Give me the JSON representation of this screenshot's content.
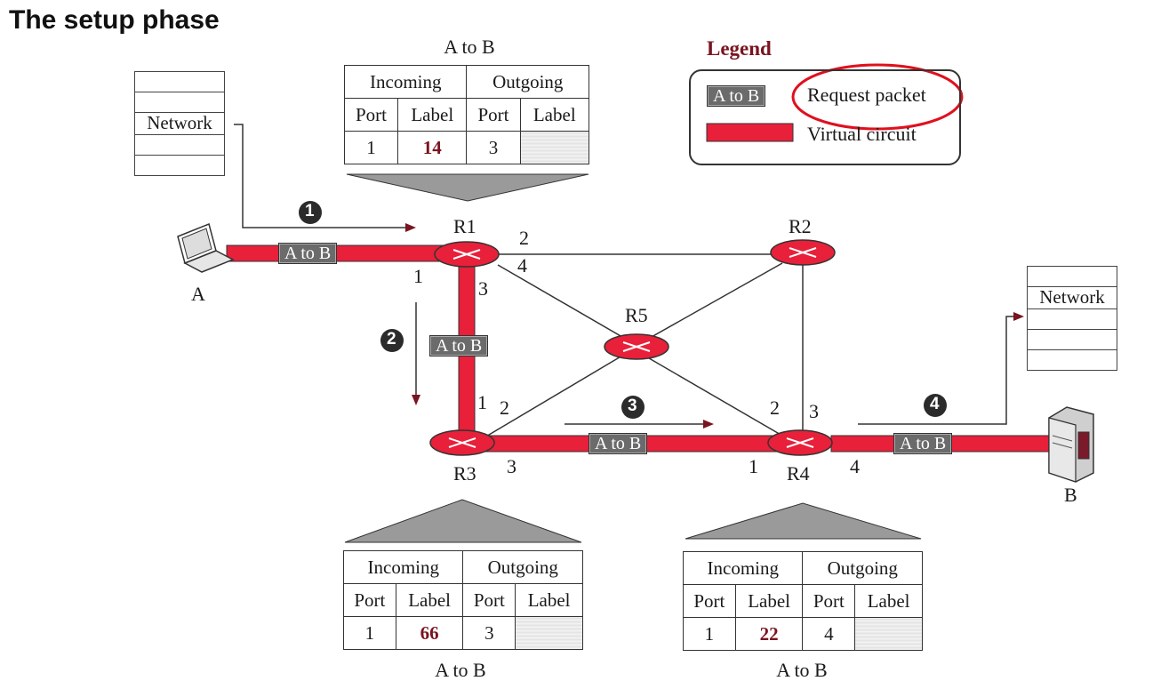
{
  "title": "The setup phase",
  "legend": {
    "heading": "Legend",
    "packet_sample": "A to B",
    "request_label": "Request packet",
    "circuit_label": "Virtual circuit"
  },
  "colors": {
    "circuit": "#e8203a",
    "router": "#e8203a",
    "label_red": "#7a1420"
  },
  "tables": [
    {
      "id": "R1",
      "caption": "A to B",
      "in_header": "Incoming",
      "out_header": "Outgoing",
      "cols": [
        "Port",
        "Label",
        "Port",
        "Label"
      ],
      "row": [
        "1",
        "14",
        "3",
        ""
      ]
    },
    {
      "id": "R3",
      "caption": "A to B",
      "in_header": "Incoming",
      "out_header": "Outgoing",
      "cols": [
        "Port",
        "Label",
        "Port",
        "Label"
      ],
      "row": [
        "1",
        "66",
        "3",
        ""
      ]
    },
    {
      "id": "R4",
      "caption": "A to B",
      "in_header": "Incoming",
      "out_header": "Outgoing",
      "cols": [
        "Port",
        "Label",
        "Port",
        "Label"
      ],
      "row": [
        "1",
        "22",
        "4",
        ""
      ]
    }
  ],
  "network_label": "Network",
  "hosts": {
    "a": "A",
    "b": "B"
  },
  "routers": [
    "R1",
    "R2",
    "R3",
    "R4",
    "R5"
  ],
  "packet_label": "A to B",
  "steps": [
    "1",
    "2",
    "3",
    "4"
  ],
  "ports": {
    "r1_2": "2",
    "r1_4": "4",
    "r1_1": "1",
    "r1_3": "3",
    "r3_1": "1",
    "r3_2": "2",
    "r3_3": "3",
    "r4_1": "1",
    "r4_2": "2",
    "r4_3": "3",
    "r4_4": "4"
  }
}
